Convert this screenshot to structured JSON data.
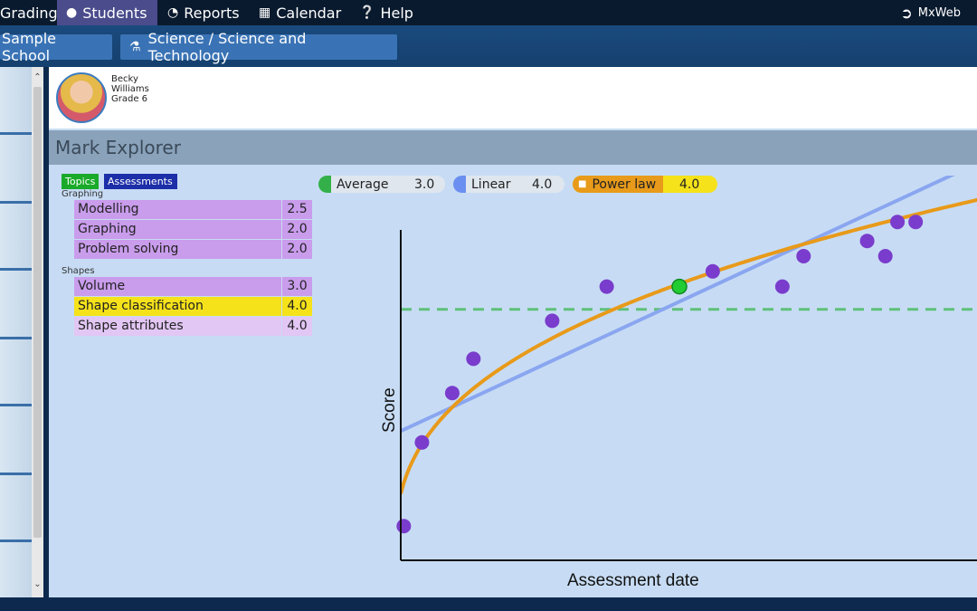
{
  "menu": {
    "items": [
      {
        "label": "Grading",
        "icon": ""
      },
      {
        "label": "Students",
        "icon": "person-icon"
      },
      {
        "label": "Reports",
        "icon": "reports-icon"
      },
      {
        "label": "Calendar",
        "icon": "calendar-icon"
      },
      {
        "label": "Help",
        "icon": "help-icon"
      }
    ],
    "user": "MxWeb"
  },
  "breadcrumb": {
    "school": "Sample School",
    "course": "Science / Science and Technology"
  },
  "student": {
    "first_name": "Becky",
    "last_name": "Williams",
    "grade": "Grade 6"
  },
  "panel": {
    "title": "Mark Explorer",
    "tabs": [
      "Topics",
      "Assessments"
    ],
    "groups": [
      {
        "label": "Graphing",
        "rows": [
          {
            "name": "Modelling",
            "score": "2.5"
          },
          {
            "name": "Graphing",
            "score": "2.0"
          },
          {
            "name": "Problem solving",
            "score": "2.0"
          }
        ]
      },
      {
        "label": "Shapes",
        "rows": [
          {
            "name": "Volume",
            "score": "3.0"
          },
          {
            "name": "Shape classification",
            "score": "4.0"
          },
          {
            "name": "Shape attributes",
            "score": "4.0"
          }
        ]
      }
    ]
  },
  "legend": [
    {
      "name": "Average",
      "value": "3.0",
      "color": "#33b04a"
    },
    {
      "name": "Linear",
      "value": "4.0",
      "color": "#6b8ff0"
    },
    {
      "name": "Power law",
      "value": "4.0",
      "color": "#e89a1a",
      "icon": "lock-icon"
    }
  ],
  "colors": {
    "accent": "#4a4c8c",
    "tab_topics": "#1aaa2a",
    "tab_assessments": "#1c2ea8",
    "highlight": "#f5e21a",
    "row": "#c99cec",
    "points": "#7a3ccc",
    "selected_point": "#22cc33"
  },
  "chart_data": {
    "type": "scatter",
    "xlabel": "Assessment date",
    "ylabel": "Score",
    "xlim": [
      0,
      100
    ],
    "ylim": [
      0,
      100
    ],
    "points": [
      {
        "x": 0.5,
        "y": 9
      },
      {
        "x": 3.5,
        "y": 31
      },
      {
        "x": 8.5,
        "y": 44
      },
      {
        "x": 12,
        "y": 53
      },
      {
        "x": 25,
        "y": 63
      },
      {
        "x": 34,
        "y": 72
      },
      {
        "x": 46,
        "y": 72,
        "selected": true
      },
      {
        "x": 51.5,
        "y": 76
      },
      {
        "x": 63,
        "y": 72
      },
      {
        "x": 66.5,
        "y": 80
      },
      {
        "x": 77,
        "y": 84
      },
      {
        "x": 80,
        "y": 80
      },
      {
        "x": 82,
        "y": 89
      },
      {
        "x": 85,
        "y": 89
      }
    ],
    "average_y": 66,
    "linear": {
      "intercept": 34,
      "slope": 0.74
    },
    "power_law": {
      "a": 17.5,
      "b": 0.37
    }
  }
}
